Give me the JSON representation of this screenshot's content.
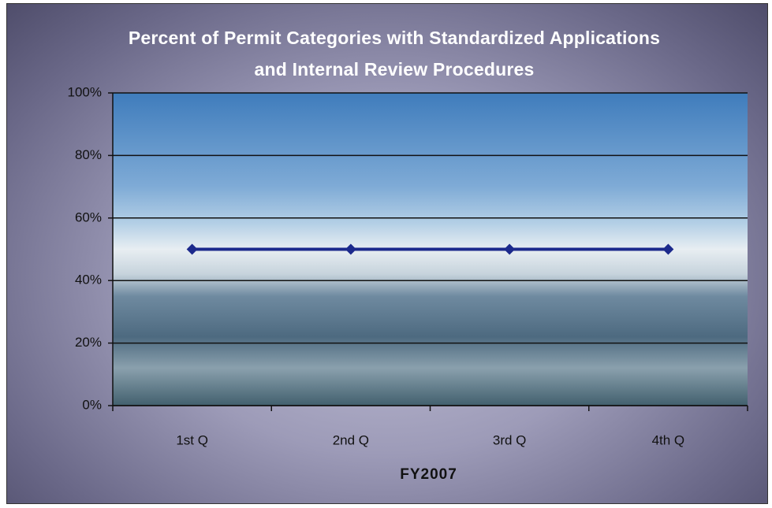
{
  "chart_data": {
    "type": "line",
    "title": "Percent of Permit Categories with Standardized Applications and Internal Review Procedures",
    "x_label": "FY2007",
    "categories": [
      "1st Q",
      "2nd Q",
      "3rd Q",
      "4th Q"
    ],
    "values": [
      50,
      50,
      50,
      50
    ],
    "color": "#1c2a8c",
    "ylim": [
      0,
      100
    ],
    "yticks": [
      {
        "value": 0,
        "label": "0%"
      },
      {
        "value": 20,
        "label": "20%"
      },
      {
        "value": 40,
        "label": "40%"
      },
      {
        "value": 60,
        "label": "60%"
      },
      {
        "value": 80,
        "label": "80%"
      },
      {
        "value": 100,
        "label": "100%"
      }
    ],
    "grid": true
  }
}
